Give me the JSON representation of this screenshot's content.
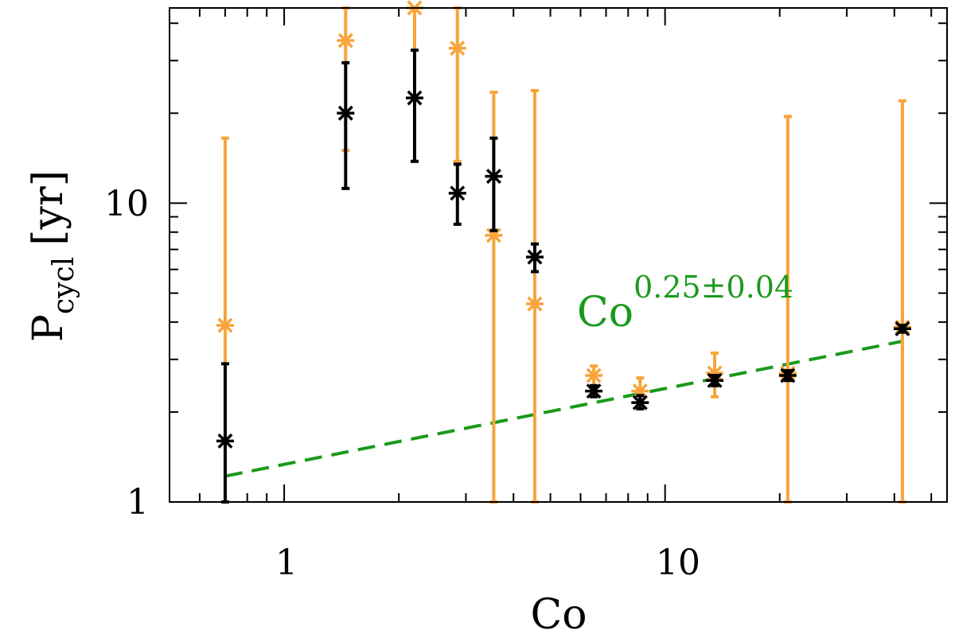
{
  "chart_data": {
    "type": "scatter",
    "title": "",
    "xlabel": "Co",
    "ylabel": {
      "base": "P",
      "subscript": "cycl",
      "unit": "[yr]"
    },
    "xscale": "log",
    "yscale": "log",
    "xlim": [
      0.5,
      55
    ],
    "ylim": [
      1,
      45
    ],
    "x_tick_labels": [
      {
        "value": 1,
        "label": "1"
      },
      {
        "value": 10,
        "label": "10"
      }
    ],
    "y_tick_labels": [
      {
        "value": 1,
        "label": "1"
      },
      {
        "value": 10,
        "label": "10"
      }
    ],
    "series": [
      {
        "name": "orange",
        "color": "#f7a43a",
        "marker": "asterisk",
        "points": [
          {
            "x": 0.7,
            "y": 3.9,
            "lo": 1.0,
            "hi": 16.5
          },
          {
            "x": 1.45,
            "y": 35.0,
            "lo": 15.0,
            "hi": 45.0
          },
          {
            "x": 2.2,
            "y": 45.0,
            "lo": 13.8,
            "hi": 45.0
          },
          {
            "x": 2.85,
            "y": 33.0,
            "lo": 13.8,
            "hi": 45.0
          },
          {
            "x": 3.55,
            "y": 7.8,
            "lo": 1.0,
            "hi": 23.5
          },
          {
            "x": 4.55,
            "y": 4.6,
            "lo": 1.0,
            "hi": 23.8
          },
          {
            "x": 6.5,
            "y": 2.65,
            "lo": 2.3,
            "hi": 2.85
          },
          {
            "x": 8.6,
            "y": 2.35,
            "lo": 2.1,
            "hi": 2.6
          },
          {
            "x": 13.5,
            "y": 2.7,
            "lo": 2.25,
            "hi": 3.15
          },
          {
            "x": 21.0,
            "y": 2.7,
            "lo": 1.0,
            "hi": 19.5
          },
          {
            "x": 42.0,
            "y": 3.85,
            "lo": 1.0,
            "hi": 22.0
          }
        ]
      },
      {
        "name": "black",
        "color": "#000000",
        "marker": "asterisk",
        "points": [
          {
            "x": 0.7,
            "y": 1.6,
            "lo": 1.0,
            "hi": 2.9
          },
          {
            "x": 1.45,
            "y": 20.0,
            "lo": 11.2,
            "hi": 29.5
          },
          {
            "x": 2.2,
            "y": 22.5,
            "lo": 13.8,
            "hi": 32.5
          },
          {
            "x": 2.85,
            "y": 10.8,
            "lo": 8.5,
            "hi": 13.5
          },
          {
            "x": 3.55,
            "y": 12.3,
            "lo": 8.1,
            "hi": 16.5
          },
          {
            "x": 4.55,
            "y": 6.6,
            "lo": 5.9,
            "hi": 7.3
          },
          {
            "x": 6.5,
            "y": 2.35,
            "lo": 2.25,
            "hi": 2.45
          },
          {
            "x": 8.6,
            "y": 2.15,
            "lo": 2.05,
            "hi": 2.27
          },
          {
            "x": 13.5,
            "y": 2.55,
            "lo": 2.45,
            "hi": 2.65
          },
          {
            "x": 21.0,
            "y": 2.65,
            "lo": 2.55,
            "hi": 2.75
          },
          {
            "x": 42.0,
            "y": 3.8,
            "lo": 3.7,
            "hi": 3.9
          }
        ]
      }
    ],
    "fit_line": {
      "color": "#1a9a1a",
      "style": "dashed",
      "x": [
        0.7,
        42.0
      ],
      "y": [
        1.22,
        3.45
      ],
      "label_base": "Co",
      "label_exponent": "0.25±0.04"
    }
  }
}
